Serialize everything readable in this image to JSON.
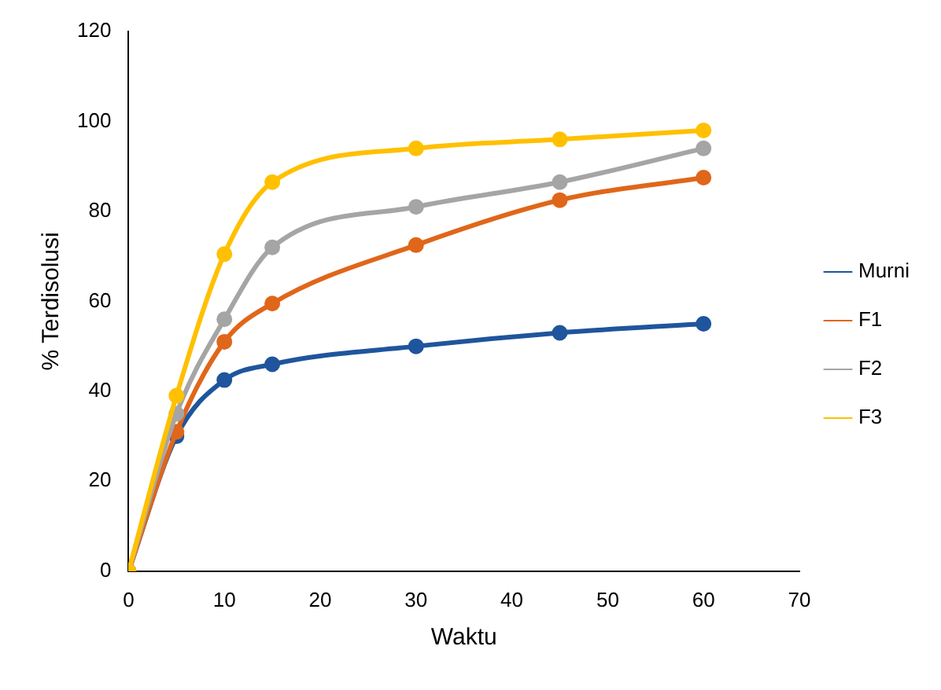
{
  "chart_data": {
    "type": "line",
    "xlabel": "Waktu",
    "ylabel": "% Terdisolusi",
    "x": [
      0,
      5,
      10,
      15,
      30,
      45,
      60
    ],
    "series": [
      {
        "name": "Murni",
        "color": "#1f559c",
        "values": [
          0,
          30,
          42.5,
          46,
          50,
          53,
          55
        ]
      },
      {
        "name": "F1",
        "color": "#e0661a",
        "values": [
          0,
          31,
          51,
          59.5,
          72.5,
          82.5,
          87.5
        ]
      },
      {
        "name": "F2",
        "color": "#a5a5a5",
        "values": [
          0,
          35,
          56,
          72,
          81,
          86.5,
          94
        ]
      },
      {
        "name": "F3",
        "color": "#ffc000",
        "values": [
          0,
          39,
          70.5,
          86.5,
          94,
          96,
          98
        ]
      }
    ],
    "xlim": [
      0,
      70
    ],
    "xticks": [
      0,
      10,
      20,
      30,
      40,
      50,
      60,
      70
    ],
    "ylim": [
      0,
      120
    ],
    "yticks": [
      0,
      20,
      40,
      60,
      80,
      100,
      120
    ],
    "grid": false,
    "legend": "right",
    "marker": "circle",
    "line_style": "solid"
  }
}
